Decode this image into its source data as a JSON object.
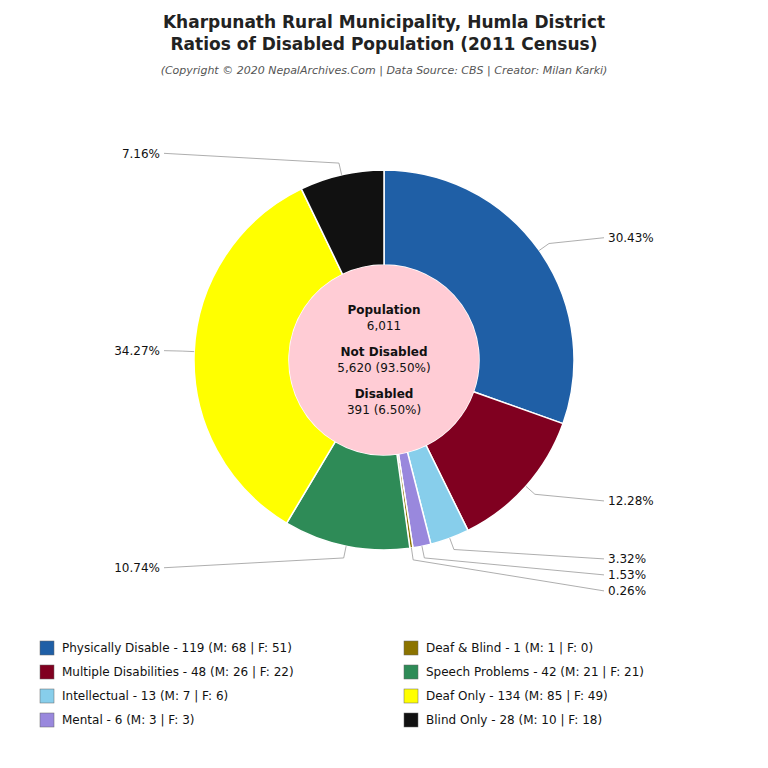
{
  "chart_data": {
    "type": "pie",
    "title": [
      "Kharpunath Rural Municipality, Humla District",
      "Ratios of Disabled Population (2011 Census)"
    ],
    "subtitle": "(Copyright © 2020 NepalArchives.Com | Data Source: CBS | Creator: Milan Karki)",
    "categories": [
      "Physically Disable - 119 (M: 68 | F: 51)",
      "Multiple Disabilities - 48 (M: 26 | F: 22)",
      "Intellectual - 13 (M: 7 | F: 6)",
      "Mental - 6 (M: 3 | F: 3)",
      "Deaf & Blind - 1 (M: 1 | F: 0)",
      "Speech Problems - 42 (M: 21 | F: 21)",
      "Deaf Only - 134 (M: 85 | F: 49)",
      "Blind Only - 28 (M: 10 | F: 18)"
    ],
    "values": [
      30.43,
      12.28,
      3.32,
      1.53,
      0.26,
      10.74,
      34.27,
      7.16
    ],
    "value_labels": [
      "30.43%",
      "12.28%",
      "3.32%",
      "1.53%",
      "0.26%",
      "10.74%",
      "34.27%",
      "7.16%"
    ],
    "data_labels": true,
    "colors": [
      "#1f5fa6",
      "#800020",
      "#87ceeb",
      "#9988dd",
      "#8b7300",
      "#2e8b57",
      "#ffff00",
      "#111111"
    ],
    "annotations": [
      "Population",
      "6,011",
      "Not Disabled",
      "5,620 (93.50%)",
      "Disabled",
      "391 (6.50%)"
    ],
    "legend": "bottom"
  }
}
